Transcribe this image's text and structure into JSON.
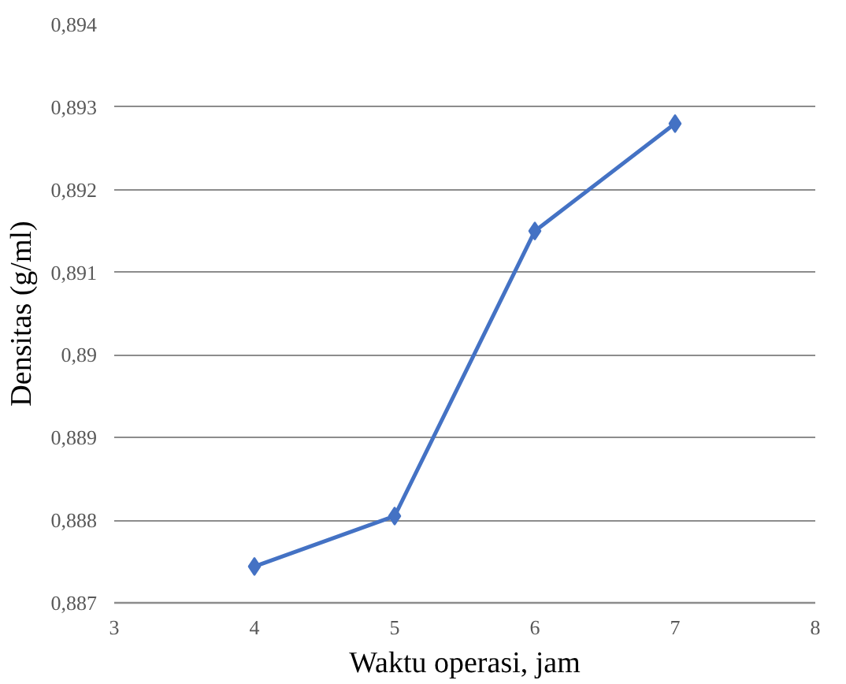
{
  "chart_data": {
    "type": "line",
    "xlabel": "Waktu operasi, jam",
    "ylabel": "Densitas (g/ml)",
    "x": [
      4,
      5,
      6,
      7
    ],
    "series": [
      {
        "color": "#4472c4",
        "values": [
          0.88744,
          0.88805,
          0.8915,
          0.8928
        ]
      }
    ],
    "xlim": [
      3,
      8
    ],
    "xticks": [
      3,
      4,
      5,
      6,
      7,
      8
    ],
    "ylim": [
      0.887,
      0.894
    ],
    "yticks": [
      {
        "value": 0.887,
        "label": "0,887"
      },
      {
        "value": 0.888,
        "label": "0,888"
      },
      {
        "value": 0.889,
        "label": "0,889"
      },
      {
        "value": 0.89,
        "label": "0,89"
      },
      {
        "value": 0.891,
        "label": "0,891"
      },
      {
        "value": 0.892,
        "label": "0,892"
      },
      {
        "value": 0.893,
        "label": "0,893"
      },
      {
        "value": 0.894,
        "label": "0,894"
      }
    ],
    "grid": "y",
    "marker": "diamond",
    "line_style": "solid"
  }
}
